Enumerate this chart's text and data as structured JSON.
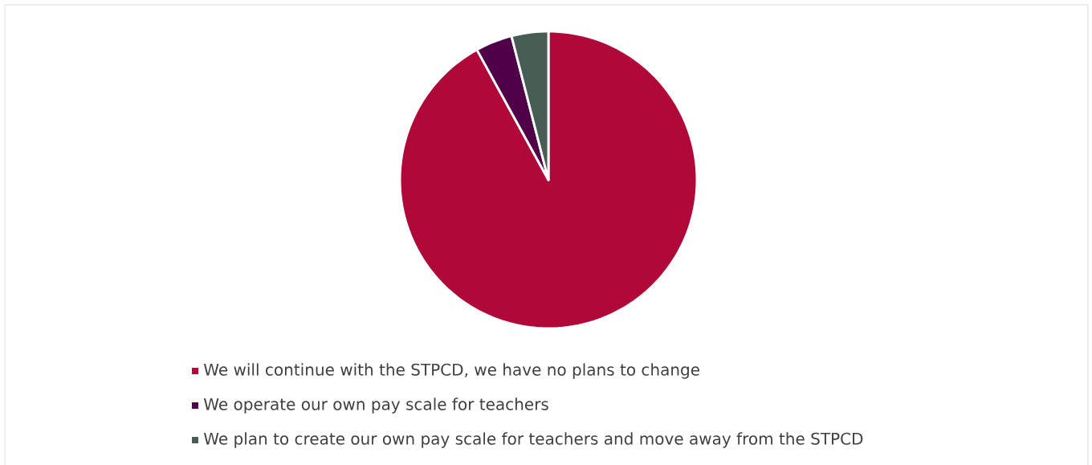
{
  "chart_data": {
    "type": "pie",
    "categories": [
      "We will continue with the STPCD, we have no plans to change",
      "We operate our own pay scale for teachers",
      "We plan to create our own pay scale for teachers and move away from the STPCD"
    ],
    "values": [
      92,
      4,
      4
    ],
    "colors": [
      "#b00838",
      "#4f0049",
      "#475c52"
    ],
    "legend": "bottom"
  }
}
